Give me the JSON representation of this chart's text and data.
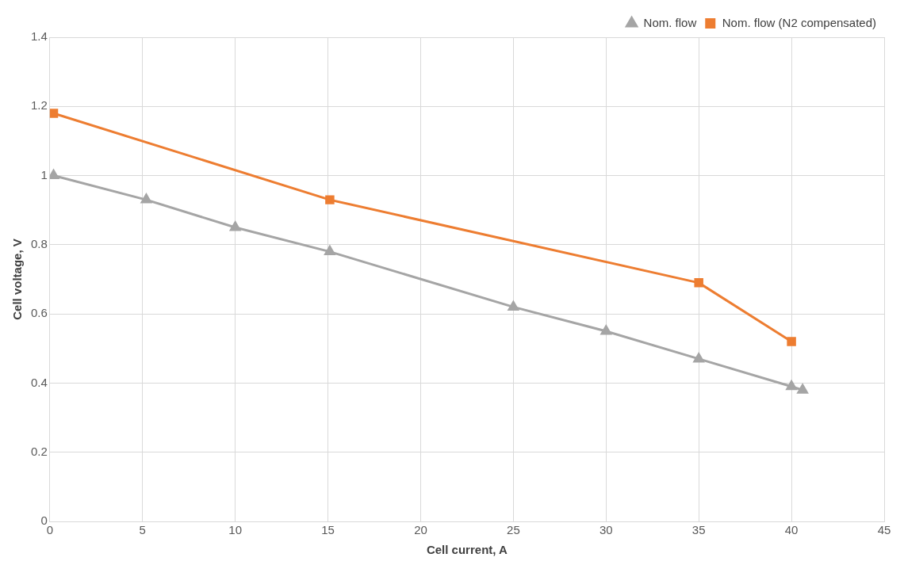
{
  "chart_data": {
    "type": "line",
    "xlabel": "Cell current, A",
    "ylabel": "Cell voltage, V",
    "xlim": [
      0,
      45
    ],
    "xticks": [
      0,
      5,
      10,
      15,
      20,
      25,
      30,
      35,
      40,
      45
    ],
    "ylim": [
      0,
      1.4
    ],
    "yticks": [
      0,
      0.2,
      0.4,
      0.6,
      0.8,
      1,
      1.2,
      1.4
    ],
    "grid": true,
    "legend": "top right",
    "line_style": "solid",
    "series": [
      {
        "name": "Nom. flow",
        "color": "#a5a5a5",
        "marker": "triangle",
        "x": [
          0.2,
          5.2,
          10,
          15.1,
          25,
          30,
          35,
          40,
          40.6
        ],
        "values": [
          1.0,
          0.93,
          0.85,
          0.78,
          0.62,
          0.55,
          0.47,
          0.39,
          0.38
        ]
      },
      {
        "name": "Nom. flow (N2 compensated)",
        "color": "#ed7d31",
        "marker": "square",
        "x": [
          0.2,
          15.1,
          35,
          40
        ],
        "values": [
          1.18,
          0.93,
          0.69,
          0.52
        ]
      }
    ]
  }
}
